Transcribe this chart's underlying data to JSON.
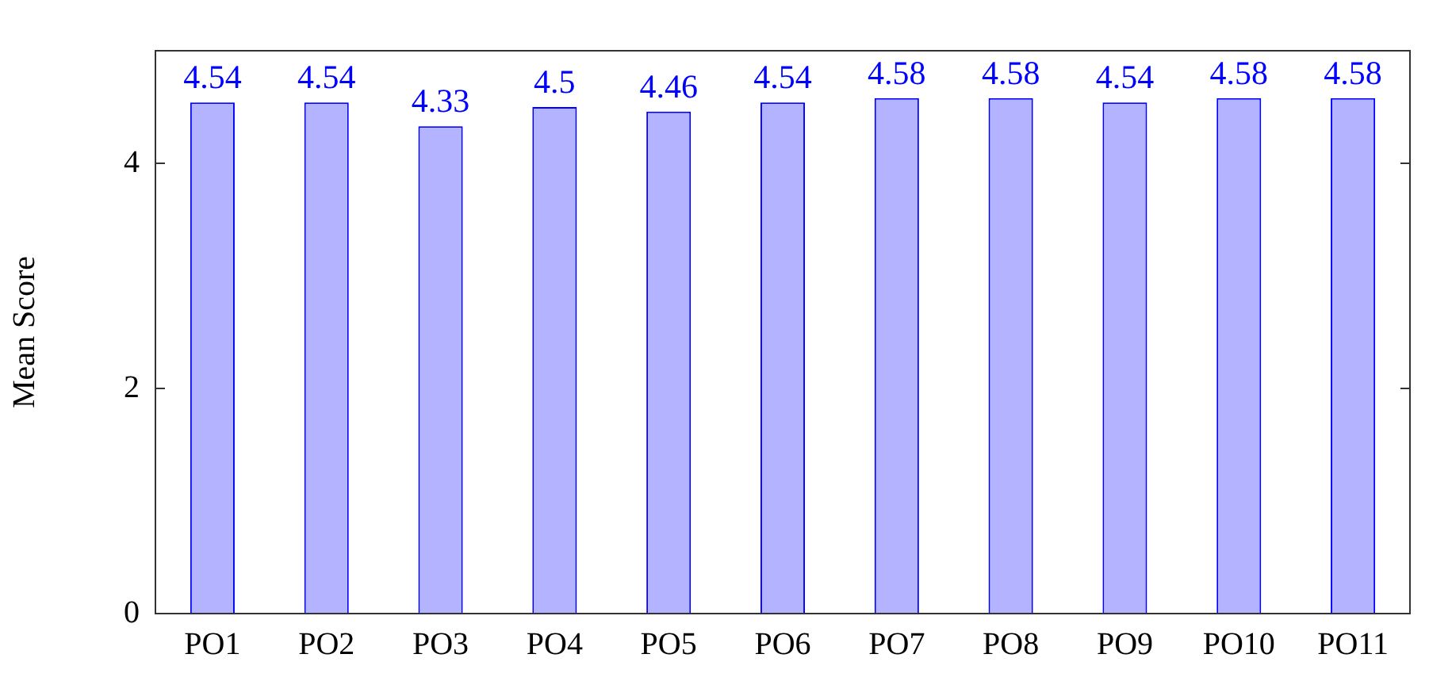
{
  "chart_data": {
    "type": "bar",
    "ylabel": "Mean Score",
    "categories": [
      "PO1",
      "PO2",
      "PO3",
      "PO4",
      "PO5",
      "PO6",
      "PO7",
      "PO8",
      "PO9",
      "PO10",
      "PO11"
    ],
    "values": [
      4.54,
      4.54,
      4.33,
      4.5,
      4.46,
      4.54,
      4.58,
      4.58,
      4.54,
      4.58,
      4.58
    ],
    "color": "#b3b3ff",
    "ylim": [
      0,
      5
    ],
    "yticks": [
      0,
      2,
      4
    ],
    "grid": false,
    "legend": false,
    "data_labels": true
  }
}
